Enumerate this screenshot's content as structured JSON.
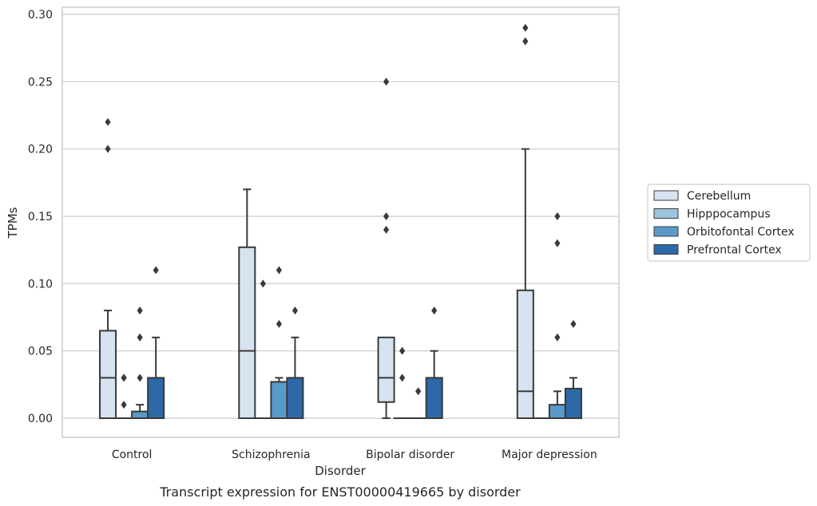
{
  "caption": "Transcript expression for ENST00000419665 by disorder",
  "chart_data": {
    "type": "box",
    "title": "",
    "xlabel": "Disorder",
    "ylabel": "TPMs",
    "ylim": [
      -0.014,
      0.305
    ],
    "yticks": [
      0.0,
      0.05,
      0.1,
      0.15,
      0.2,
      0.25,
      0.3
    ],
    "ytick_labels": [
      "0.00",
      "0.05",
      "0.10",
      "0.15",
      "0.20",
      "0.25",
      "0.30"
    ],
    "grid": "horizontal",
    "legend_position": "right",
    "categories": [
      "Control",
      "Schizophrenia",
      "Bipolar disorder",
      "Major depression"
    ],
    "series": [
      {
        "name": "Cerebellum",
        "color": "#d6e3f1",
        "boxes": [
          {
            "q1": 0.0,
            "median": 0.03,
            "q3": 0.065,
            "whisker_low": 0.0,
            "whisker_high": 0.08,
            "outliers": [
              0.2,
              0.22
            ]
          },
          {
            "q1": 0.0,
            "median": 0.05,
            "q3": 0.127,
            "whisker_low": 0.0,
            "whisker_high": 0.17,
            "outliers": []
          },
          {
            "q1": 0.012,
            "median": 0.03,
            "q3": 0.06,
            "whisker_low": 0.0,
            "whisker_high": 0.06,
            "outliers": [
              0.14,
              0.15,
              0.25
            ]
          },
          {
            "q1": 0.0,
            "median": 0.02,
            "q3": 0.095,
            "whisker_low": 0.0,
            "whisker_high": 0.2,
            "outliers": [
              0.28,
              0.29
            ]
          }
        ]
      },
      {
        "name": "Hipppocampus",
        "color": "#9dc4df",
        "boxes": [
          {
            "q1": 0.0,
            "median": 0.0,
            "q3": 0.0,
            "whisker_low": 0.0,
            "whisker_high": 0.0,
            "outliers": [
              0.01,
              0.03,
              0.03
            ]
          },
          {
            "q1": 0.0,
            "median": 0.0,
            "q3": 0.0,
            "whisker_low": 0.0,
            "whisker_high": 0.0,
            "outliers": [
              0.1
            ]
          },
          {
            "q1": 0.0,
            "median": 0.0,
            "q3": 0.0,
            "whisker_low": 0.0,
            "whisker_high": 0.0,
            "outliers": [
              0.03,
              0.05
            ]
          },
          {
            "q1": 0.0,
            "median": 0.0,
            "q3": 0.0,
            "whisker_low": 0.0,
            "whisker_high": 0.0,
            "outliers": []
          }
        ]
      },
      {
        "name": "Orbitofontal Cortex",
        "color": "#5a9ac8",
        "boxes": [
          {
            "q1": 0.0,
            "median": 0.0,
            "q3": 0.005,
            "whisker_low": 0.0,
            "whisker_high": 0.01,
            "outliers": [
              0.03,
              0.06,
              0.08
            ]
          },
          {
            "q1": 0.0,
            "median": 0.0,
            "q3": 0.027,
            "whisker_low": 0.0,
            "whisker_high": 0.03,
            "outliers": [
              0.07,
              0.11
            ]
          },
          {
            "q1": 0.0,
            "median": 0.0,
            "q3": 0.0,
            "whisker_low": 0.0,
            "whisker_high": 0.0,
            "outliers": [
              0.02
            ]
          },
          {
            "q1": 0.0,
            "median": 0.0,
            "q3": 0.01,
            "whisker_low": 0.0,
            "whisker_high": 0.02,
            "outliers": [
              0.06,
              0.13,
              0.15
            ]
          }
        ]
      },
      {
        "name": "Prefrontal Cortex",
        "color": "#2d69a7",
        "boxes": [
          {
            "q1": 0.0,
            "median": 0.0,
            "q3": 0.03,
            "whisker_low": 0.0,
            "whisker_high": 0.06,
            "outliers": [
              0.11
            ]
          },
          {
            "q1": 0.0,
            "median": 0.0,
            "q3": 0.03,
            "whisker_low": 0.0,
            "whisker_high": 0.06,
            "outliers": [
              0.08
            ]
          },
          {
            "q1": 0.0,
            "median": 0.0,
            "q3": 0.03,
            "whisker_low": 0.0,
            "whisker_high": 0.05,
            "outliers": [
              0.08
            ]
          },
          {
            "q1": 0.0,
            "median": 0.0,
            "q3": 0.022,
            "whisker_low": 0.0,
            "whisker_high": 0.03,
            "outliers": [
              0.07
            ]
          }
        ]
      }
    ]
  }
}
